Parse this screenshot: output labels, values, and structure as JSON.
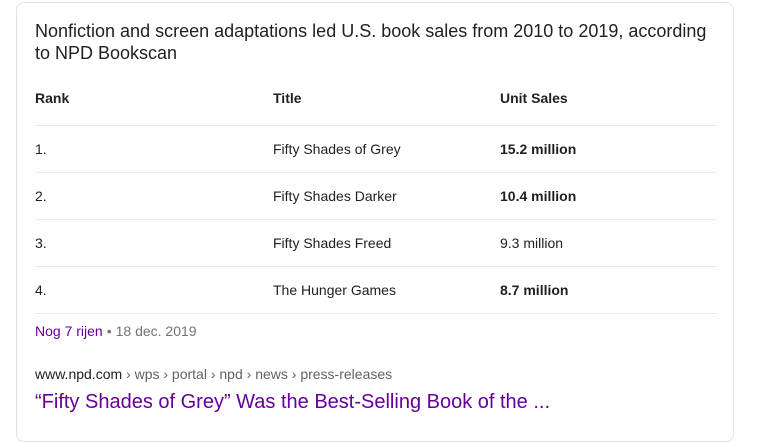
{
  "snippet": {
    "heading": "Nonfiction and screen adaptations led U.S. book sales from 2010 to 2019, according to NPD Bookscan"
  },
  "table": {
    "columns": [
      "Rank",
      "Title",
      "Unit Sales"
    ],
    "rows": [
      {
        "rank": "1.",
        "title": "Fifty Shades of Grey",
        "sales": "15.2 million",
        "bold": true
      },
      {
        "rank": "2.",
        "title": "Fifty Shades Darker",
        "sales": "10.4 million",
        "bold": true
      },
      {
        "rank": "3.",
        "title": "Fifty Shades Freed",
        "sales": "9.3 million",
        "bold": false
      },
      {
        "rank": "4.",
        "title": "The Hunger Games",
        "sales": "8.7 million",
        "bold": true
      }
    ]
  },
  "footer": {
    "more_rows": "Nog 7 rijen",
    "separator": "•",
    "date": "18 dec. 2019"
  },
  "source": {
    "domain": "www.npd.com",
    "path": " › wps › portal › npd › news › press-releases",
    "link_text": "“Fifty Shades of Grey” Was the Best-Selling Book of the ..."
  },
  "colors": {
    "visited_link": "#660099",
    "text": "#202124",
    "muted": "#70757a"
  }
}
